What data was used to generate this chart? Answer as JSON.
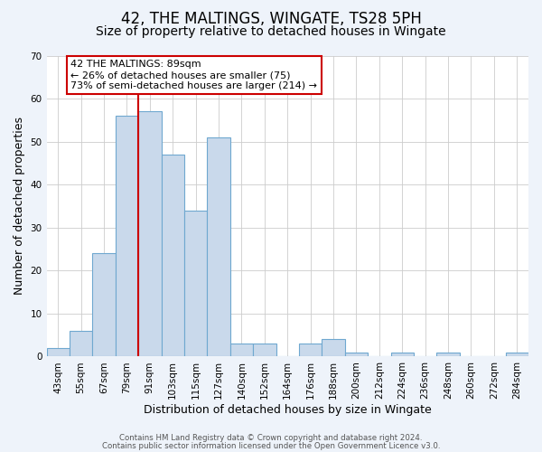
{
  "title": "42, THE MALTINGS, WINGATE, TS28 5PH",
  "subtitle": "Size of property relative to detached houses in Wingate",
  "xlabel": "Distribution of detached houses by size in Wingate",
  "ylabel": "Number of detached properties",
  "bin_labels": [
    "43sqm",
    "55sqm",
    "67sqm",
    "79sqm",
    "91sqm",
    "103sqm",
    "115sqm",
    "127sqm",
    "140sqm",
    "152sqm",
    "164sqm",
    "176sqm",
    "188sqm",
    "200sqm",
    "212sqm",
    "224sqm",
    "236sqm",
    "248sqm",
    "260sqm",
    "272sqm",
    "284sqm"
  ],
  "bar_heights": [
    2,
    6,
    24,
    56,
    57,
    47,
    34,
    51,
    3,
    3,
    0,
    3,
    4,
    1,
    0,
    1,
    0,
    1,
    0,
    0,
    1
  ],
  "bar_color": "#c9d9eb",
  "bar_edge_color": "#6fa8d0",
  "ylim": [
    0,
    70
  ],
  "yticks": [
    0,
    10,
    20,
    30,
    40,
    50,
    60,
    70
  ],
  "red_line_bin_index": 4,
  "red_line_color": "#cc0000",
  "annotation_line1": "42 THE MALTINGS: 89sqm",
  "annotation_line2": "← 26% of detached houses are smaller (75)",
  "annotation_line3": "73% of semi-detached houses are larger (214) →",
  "footer_line1": "Contains HM Land Registry data © Crown copyright and database right 2024.",
  "footer_line2": "Contains public sector information licensed under the Open Government Licence v3.0.",
  "background_color": "#eef3fa",
  "plot_bg_color": "#ffffff",
  "title_fontsize": 12,
  "subtitle_fontsize": 10,
  "axis_label_fontsize": 9,
  "tick_label_fontsize": 7.5
}
